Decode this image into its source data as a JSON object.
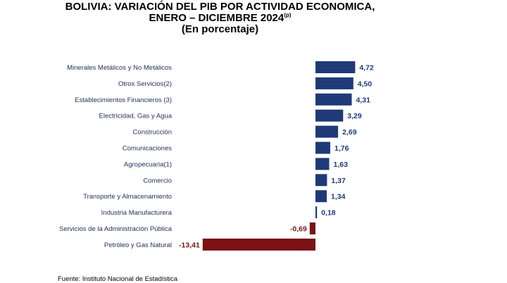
{
  "chart_data": {
    "type": "bar",
    "orientation": "horizontal",
    "title_lines": [
      "BOLIVIA: VARIACIÓN DEL PIB POR ACTIVIDAD ECONOMICA,",
      "ENERO – DICIEMBRE 2024"
    ],
    "title_superscript": "(p)",
    "subtitle": "(En porcentaje)",
    "categories": [
      "Minerales Metálicos y No Metálicos",
      "Otros Servicios(2)",
      "Establecimientos Financieros (3)",
      "Electricidad, Gas y Agua",
      "Construcción",
      "Comunicaciones",
      "Agropecuaria(1)",
      "Comercio",
      "Transporte y Almacenamiento",
      "Industria Manufacturera",
      "Servicios de la Administración Pública",
      "Petróleo y Gas Natural"
    ],
    "values": [
      4.72,
      4.5,
      4.31,
      3.29,
      2.69,
      1.76,
      1.63,
      1.37,
      1.34,
      0.18,
      -0.69,
      -13.41
    ],
    "value_labels": [
      "4,72",
      "4,50",
      "4,31",
      "3,29",
      "2,69",
      "1,76",
      "1,63",
      "1,37",
      "1,34",
      "0,18",
      "-0,69",
      "-13,41"
    ],
    "colors": {
      "positive": "#1f3a78",
      "negative": "#7a1214"
    },
    "grid": false
  },
  "source": "Fuente: Instituto Nacional de Estadística"
}
